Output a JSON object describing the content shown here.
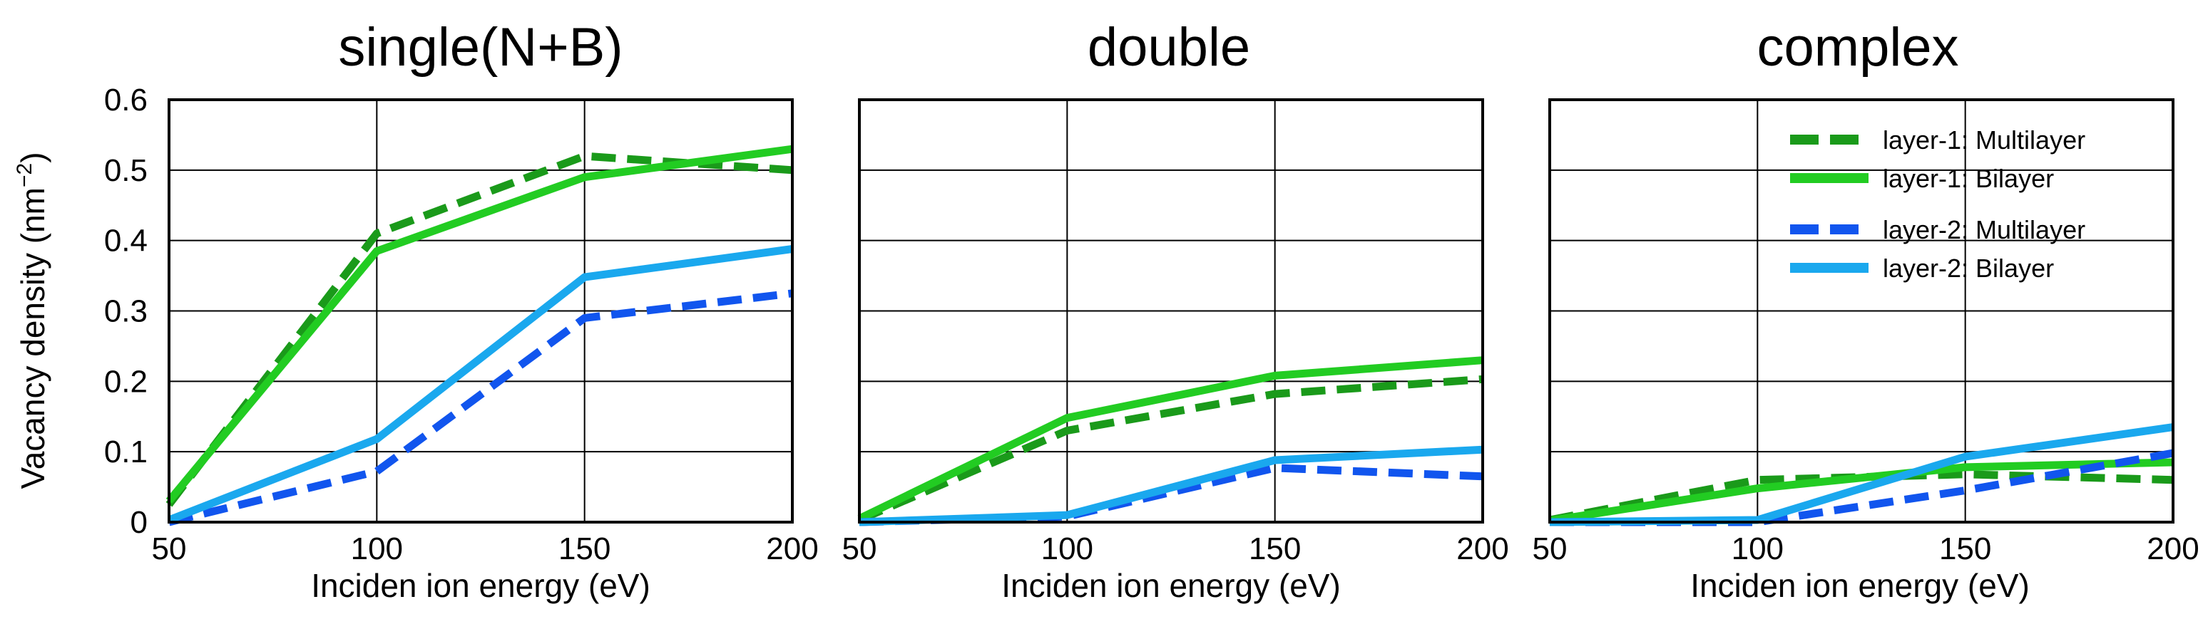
{
  "colors": {
    "l1_multi": "#1a9a1a",
    "l1_bi": "#22cc22",
    "l2_multi": "#1155ee",
    "l2_bi": "#1aa8ee"
  },
  "ylabel_main": "Vacancy density (nm",
  "ylabel_sup": "−2",
  "ylabel_end": ")",
  "y_ticks": [
    "0",
    "0.1",
    "0.2",
    "0.3",
    "0.4",
    "0.5",
    "0.6"
  ],
  "legend": [
    {
      "label": "layer-1: Multilayer",
      "color": "#1a9a1a",
      "dashed": true
    },
    {
      "label": "layer-1: Bilayer",
      "color": "#22cc22",
      "dashed": false
    },
    {
      "label": "layer-2: Multilayer",
      "color": "#1155ee",
      "dashed": true
    },
    {
      "label": "layer-2: Bilayer",
      "color": "#1aa8ee",
      "dashed": false
    }
  ],
  "chart_data": [
    {
      "type": "line",
      "title": "single(N+B)",
      "xlabel": "Inciden ion energy (eV)",
      "ylabel": "Vacancy density (nm−2)",
      "x": [
        50,
        100,
        150,
        200
      ],
      "xlim": [
        50,
        200
      ],
      "ylim": [
        0,
        0.6
      ],
      "series": [
        {
          "name": "layer-1: Multilayer",
          "values": [
            0.025,
            0.41,
            0.52,
            0.5
          ]
        },
        {
          "name": "layer-1: Bilayer",
          "values": [
            0.03,
            0.385,
            0.49,
            0.53
          ]
        },
        {
          "name": "layer-2: Multilayer",
          "values": [
            0.0,
            0.072,
            0.29,
            0.325
          ]
        },
        {
          "name": "layer-2: Bilayer",
          "values": [
            0.003,
            0.118,
            0.348,
            0.388
          ]
        }
      ]
    },
    {
      "type": "line",
      "title": "double",
      "xlabel": "Inciden ion energy (eV)",
      "ylabel": "Vacancy density (nm−2)",
      "x": [
        50,
        100,
        150,
        200
      ],
      "xlim": [
        50,
        200
      ],
      "ylim": [
        0,
        0.6
      ],
      "series": [
        {
          "name": "layer-1: Multilayer",
          "values": [
            0.003,
            0.13,
            0.182,
            0.203
          ]
        },
        {
          "name": "layer-1: Bilayer",
          "values": [
            0.005,
            0.148,
            0.208,
            0.23
          ]
        },
        {
          "name": "layer-2: Multilayer",
          "values": [
            0.0,
            0.008,
            0.077,
            0.065
          ]
        },
        {
          "name": "layer-2: Bilayer",
          "values": [
            0.0,
            0.01,
            0.088,
            0.103
          ]
        }
      ]
    },
    {
      "type": "line",
      "title": "complex",
      "xlabel": "Inciden ion energy (eV)",
      "ylabel": "Vacancy density (nm−2)",
      "x": [
        50,
        100,
        150,
        200
      ],
      "xlim": [
        50,
        200
      ],
      "ylim": [
        0,
        0.6
      ],
      "series": [
        {
          "name": "layer-1: Multilayer",
          "values": [
            0.003,
            0.06,
            0.068,
            0.06
          ]
        },
        {
          "name": "layer-1: Bilayer",
          "values": [
            0.002,
            0.048,
            0.078,
            0.085
          ]
        },
        {
          "name": "layer-2: Multilayer",
          "values": [
            0.0,
            0.0,
            0.045,
            0.098
          ]
        },
        {
          "name": "layer-2: Bilayer",
          "values": [
            0.0,
            0.003,
            0.093,
            0.135
          ]
        }
      ]
    }
  ]
}
